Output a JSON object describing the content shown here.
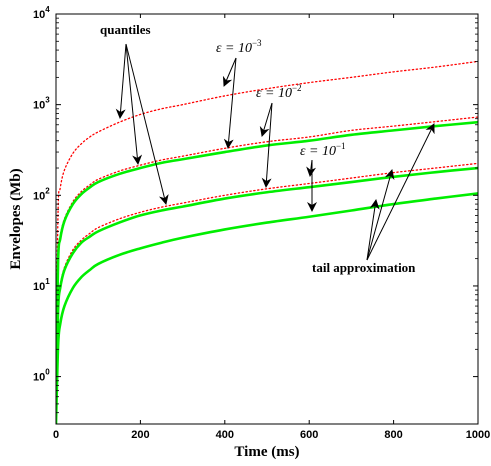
{
  "chart_data": {
    "type": "line",
    "title": "",
    "xlabel": "Time (ms)",
    "ylabel": "Envelopes (Mb)",
    "xlim": [
      0,
      1000
    ],
    "ylim": [
      0.3,
      10000
    ],
    "yscale": "log",
    "grid": false,
    "x_ticks": [
      0,
      200,
      400,
      600,
      800,
      1000
    ],
    "y_ticks": [
      {
        "value": 1,
        "base": "10",
        "exp": "0"
      },
      {
        "value": 10,
        "base": "10",
        "exp": "1"
      },
      {
        "value": 100,
        "base": "10",
        "exp": "2"
      },
      {
        "value": 1000,
        "base": "10",
        "exp": "3"
      },
      {
        "value": 10000,
        "base": "10",
        "exp": "4"
      }
    ],
    "x": [
      0,
      5,
      10,
      20,
      40,
      60,
      80,
      100,
      150,
      200,
      250,
      300,
      400,
      500,
      600,
      700,
      800,
      900,
      1000
    ],
    "series": [
      {
        "kind": "quantile",
        "epsilon_exp": "-3",
        "color": "#ff0000",
        "style": "dotted",
        "values": [
          1.5,
          70,
          120,
          190,
          290,
          370,
          440,
          500,
          640,
          780,
          900,
          1000,
          1250,
          1500,
          1750,
          2000,
          2300,
          2600,
          3000
        ]
      },
      {
        "kind": "quantile",
        "epsilon_exp": "-2",
        "color": "#ff0000",
        "style": "dotted",
        "values": [
          0.8,
          20,
          35,
          55,
          85,
          110,
          130,
          150,
          185,
          215,
          245,
          270,
          330,
          390,
          440,
          520,
          580,
          650,
          730
        ]
      },
      {
        "kind": "tail",
        "epsilon_exp": "-2",
        "color": "#00ee00",
        "style": "solid",
        "values": [
          0.8,
          19,
          33,
          52,
          80,
          103,
          122,
          140,
          172,
          200,
          228,
          250,
          300,
          355,
          400,
          465,
          520,
          580,
          640
        ]
      },
      {
        "kind": "quantile",
        "epsilon_exp": "-1",
        "color": "#ff0000",
        "style": "dotted",
        "values": [
          0.5,
          6,
          10,
          16,
          25,
          32,
          38,
          44,
          55,
          65,
          74,
          82,
          100,
          118,
          135,
          155,
          178,
          200,
          225
        ]
      },
      {
        "kind": "tail",
        "epsilon_exp": "-1",
        "color": "#00ee00",
        "style": "solid",
        "values": [
          0.5,
          5.5,
          9.5,
          15,
          23,
          30,
          35,
          40,
          50,
          60,
          68,
          75,
          92,
          108,
          123,
          140,
          160,
          180,
          200
        ]
      },
      {
        "kind": "tail",
        "epsilon_exp": "0",
        "color": "#00ee00",
        "style": "solid",
        "values": [
          0.3,
          2.2,
          3.8,
          6,
          9.5,
          12.5,
          15,
          17.5,
          22,
          26,
          30,
          34,
          42,
          50,
          58,
          68,
          80,
          92,
          105
        ]
      }
    ],
    "annotations": {
      "quantiles": "quantiles",
      "tail": "tail approximation",
      "eps_symbol": "ε = 10",
      "eps3": "−3",
      "eps2": "−2",
      "eps1": "−1"
    }
  }
}
